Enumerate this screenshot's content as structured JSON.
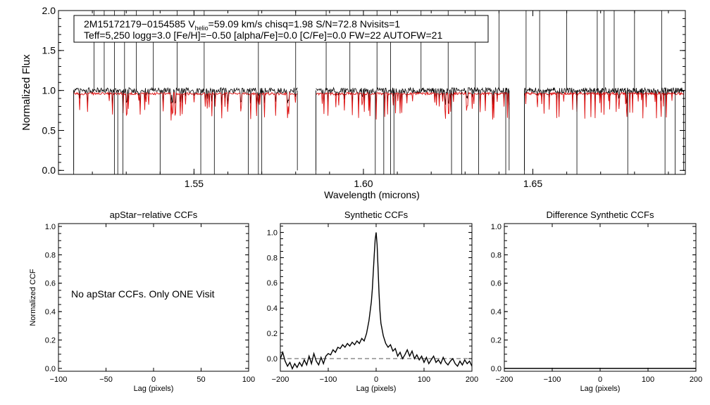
{
  "figure": {
    "info_box": {
      "line1_id": "2M15172179−0154585",
      "line1_v": "V",
      "line1_v_sub": "helio",
      "line1_rest": "=59.09 km/s  chisq=1.98  S/N=72.8  Nvisits=1",
      "line2": "Teff=5,250 logg=3.0 [Fe/H]=−0.50 [alpha/Fe]=0.0 [C/Fe]=0.0 FW=22 AUTOFW=21"
    },
    "no_ccf_message": "No apStar CCFs.  Only ONE Visit"
  },
  "colors": {
    "observed": "#000000",
    "model": "#dd1111",
    "zero_line": "#555555",
    "frame": "#000000"
  },
  "chart_data": [
    {
      "type": "line",
      "title": "",
      "xlabel": "Wavelength (microns)",
      "ylabel": "Normalized Flux",
      "xlim": [
        1.51,
        1.695
      ],
      "ylim": [
        -0.05,
        2.0
      ],
      "xticks": [
        1.55,
        1.6,
        1.65
      ],
      "xtick_labels": [
        "1.55",
        "1.60",
        "1.65"
      ],
      "yticks": [
        0.0,
        0.5,
        1.0,
        1.5,
        2.0
      ],
      "ytick_labels": [
        "0.0",
        "0.5",
        "1.0",
        "1.5",
        "2.0"
      ],
      "chips": [
        [
          1.5145,
          1.5805
        ],
        [
          1.586,
          1.643
        ],
        [
          1.6475,
          1.6945
        ]
      ],
      "series": [
        {
          "role": "observed",
          "level": 1.0
        },
        {
          "role": "model",
          "level": 0.96
        }
      ],
      "emission_spikes": [
        1.5205,
        1.5235,
        1.5265,
        1.5295,
        1.533,
        1.538,
        1.545,
        1.553,
        1.569,
        1.58,
        1.589,
        1.596,
        1.604,
        1.608,
        1.617,
        1.625,
        1.633,
        1.64,
        1.648,
        1.652,
        1.66,
        1.669,
        1.671,
        1.674,
        1.68,
        1.688
      ],
      "absorption_spikes": [
        1.5145,
        1.5265,
        1.5275,
        1.529,
        1.54,
        1.552,
        1.556,
        1.566,
        1.569,
        1.57,
        1.586,
        1.6035,
        1.606,
        1.608,
        1.609,
        1.626,
        1.629,
        1.634,
        1.642,
        1.6475,
        1.663,
        1.678,
        1.689,
        1.692
      ]
    },
    {
      "type": "line",
      "title": "apStar−relative CCFs",
      "xlabel": "Lag (pixels)",
      "ylabel": "Normalized CCF",
      "xlim": [
        -100,
        100
      ],
      "ylim": [
        -0.02,
        1.02
      ],
      "xticks": [
        -100,
        -50,
        0,
        50,
        100
      ],
      "xtick_labels": [
        "−100",
        "−50",
        "0",
        "50",
        "100"
      ],
      "yticks": [
        0.0,
        0.2,
        0.4,
        0.6,
        0.8,
        1.0
      ],
      "ytick_labels": [
        "0.0",
        "0.2",
        "0.4",
        "0.6",
        "0.8",
        "1.0"
      ],
      "series": []
    },
    {
      "type": "line",
      "title": "Synthetic CCFs",
      "xlabel": "Lag (pixels)",
      "ylabel": "",
      "xlim": [
        -200,
        200
      ],
      "ylim": [
        -0.1,
        1.07
      ],
      "xticks": [
        -200,
        -100,
        0,
        100,
        200
      ],
      "xtick_labels": [
        "−200",
        "−100",
        "0",
        "100",
        "200"
      ],
      "yticks": [
        0.0,
        0.2,
        0.4,
        0.6,
        0.8,
        1.0
      ],
      "ytick_labels": [
        "0.0",
        "0.2",
        "0.4",
        "0.6",
        "0.8",
        "1.0"
      ],
      "zero_line": 0.0,
      "series": [
        {
          "x": [
            -200,
            -195,
            -190,
            -185,
            -180,
            -175,
            -170,
            -165,
            -160,
            -155,
            -150,
            -145,
            -140,
            -135,
            -130,
            -125,
            -120,
            -115,
            -110,
            -105,
            -100,
            -95,
            -90,
            -85,
            -80,
            -75,
            -70,
            -65,
            -60,
            -55,
            -50,
            -45,
            -40,
            -35,
            -30,
            -25,
            -20,
            -15,
            -10,
            -8,
            -6,
            -4,
            -2,
            0,
            2,
            4,
            6,
            8,
            10,
            15,
            20,
            25,
            30,
            35,
            40,
            45,
            50,
            55,
            60,
            65,
            70,
            75,
            80,
            85,
            90,
            95,
            100,
            105,
            110,
            115,
            120,
            125,
            130,
            135,
            140,
            145,
            150,
            155,
            160,
            165,
            170,
            175,
            180,
            185,
            190,
            195,
            200
          ],
          "y": [
            0.0,
            0.05,
            -0.02,
            -0.06,
            -0.03,
            -0.08,
            -0.04,
            -0.07,
            -0.03,
            -0.06,
            -0.01,
            -0.05,
            0.02,
            -0.04,
            0.04,
            -0.02,
            -0.05,
            0.01,
            -0.04,
            0.02,
            0.04,
            0.03,
            0.07,
            0.05,
            0.09,
            0.08,
            0.11,
            0.09,
            0.12,
            0.1,
            0.13,
            0.11,
            0.14,
            0.12,
            0.16,
            0.14,
            0.2,
            0.3,
            0.45,
            0.55,
            0.68,
            0.82,
            0.94,
            1.0,
            0.9,
            0.72,
            0.52,
            0.38,
            0.28,
            0.18,
            0.12,
            0.09,
            0.11,
            0.06,
            0.08,
            0.02,
            0.05,
            0.0,
            0.03,
            0.07,
            0.02,
            0.06,
            0.0,
            0.03,
            -0.01,
            0.02,
            -0.03,
            0.01,
            -0.04,
            -0.01,
            0.02,
            -0.03,
            -0.01,
            -0.04,
            0.01,
            -0.03,
            -0.05,
            -0.02,
            0.0,
            -0.04,
            -0.06,
            -0.02,
            -0.05,
            -0.01,
            -0.04,
            -0.02,
            -0.06
          ]
        }
      ]
    },
    {
      "type": "line",
      "title": "Difference Synthetic CCFs",
      "xlabel": "Lag (pixels)",
      "ylabel": "",
      "xlim": [
        -200,
        200
      ],
      "ylim": [
        -0.02,
        1.02
      ],
      "xticks": [
        -200,
        -100,
        0,
        100,
        200
      ],
      "xtick_labels": [
        "−200",
        "−100",
        "0",
        "100",
        "200"
      ],
      "yticks": [
        0.0,
        0.2,
        0.4,
        0.6,
        0.8,
        1.0
      ],
      "ytick_labels": [
        "0.0",
        "0.2",
        "0.4",
        "0.6",
        "0.8",
        "1.0"
      ],
      "series": [
        {
          "x": [
            -200,
            200
          ],
          "y": [
            0.0,
            0.0
          ]
        }
      ]
    }
  ]
}
